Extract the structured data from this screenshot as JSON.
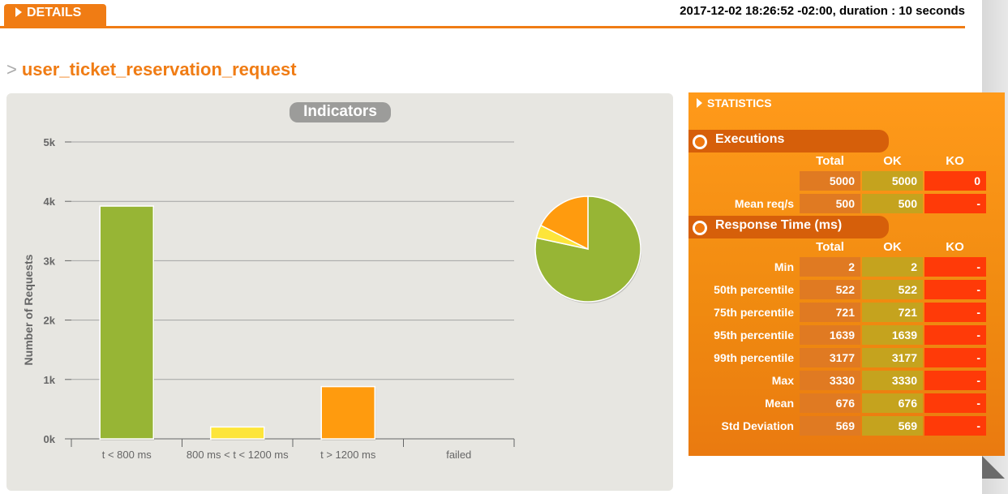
{
  "header": {
    "details_label": "DETAILS",
    "run_info": "2017-12-02 18:26:52 -02:00, duration : 10 seconds"
  },
  "page_title": {
    "prefix": ">",
    "name": "user_ticket_reservation_request"
  },
  "chart_panel": {
    "title": "Indicators"
  },
  "chart_data": [
    {
      "type": "bar",
      "title": "Indicators",
      "ylabel": "Number of Requests",
      "xlabel": "",
      "categories": [
        "t < 800 ms",
        "800 ms < t < 1200 ms",
        "t > 1200 ms",
        "failed"
      ],
      "values": [
        3920,
        200,
        880,
        0
      ],
      "colors": [
        "#97b535",
        "#fde53a",
        "#ff9b0e",
        "#e03c2a"
      ],
      "ylim": [
        0,
        5000
      ],
      "yticks": [
        0,
        1000,
        2000,
        3000,
        4000,
        5000
      ],
      "ytick_labels": [
        "0k",
        "1k",
        "2k",
        "3k",
        "4k",
        "5k"
      ],
      "grid": true
    },
    {
      "type": "pie",
      "values": [
        3920,
        200,
        880,
        0
      ],
      "colors": [
        "#97b535",
        "#fde53a",
        "#ff9b0e",
        "#e03c2a"
      ]
    }
  ],
  "statistics": {
    "title": "STATISTICS",
    "executions": {
      "title": "Executions",
      "columns": [
        "Total",
        "OK",
        "KO"
      ],
      "rows": [
        {
          "label": "",
          "total": "5000",
          "ok": "5000",
          "ko": "0"
        },
        {
          "label": "Mean req/s",
          "total": "500",
          "ok": "500",
          "ko": "-"
        }
      ]
    },
    "response_time": {
      "title": "Response Time (ms)",
      "columns": [
        "Total",
        "OK",
        "KO"
      ],
      "rows": [
        {
          "label": "Min",
          "total": "2",
          "ok": "2",
          "ko": "-"
        },
        {
          "label": "50th percentile",
          "total": "522",
          "ok": "522",
          "ko": "-"
        },
        {
          "label": "75th percentile",
          "total": "721",
          "ok": "721",
          "ko": "-"
        },
        {
          "label": "95th percentile",
          "total": "1639",
          "ok": "1639",
          "ko": "-"
        },
        {
          "label": "99th percentile",
          "total": "3177",
          "ok": "3177",
          "ko": "-"
        },
        {
          "label": "Max",
          "total": "3330",
          "ok": "3330",
          "ko": "-"
        },
        {
          "label": "Mean",
          "total": "676",
          "ok": "676",
          "ko": "-"
        },
        {
          "label": "Std Deviation",
          "total": "569",
          "ok": "569",
          "ko": "-"
        }
      ]
    }
  }
}
